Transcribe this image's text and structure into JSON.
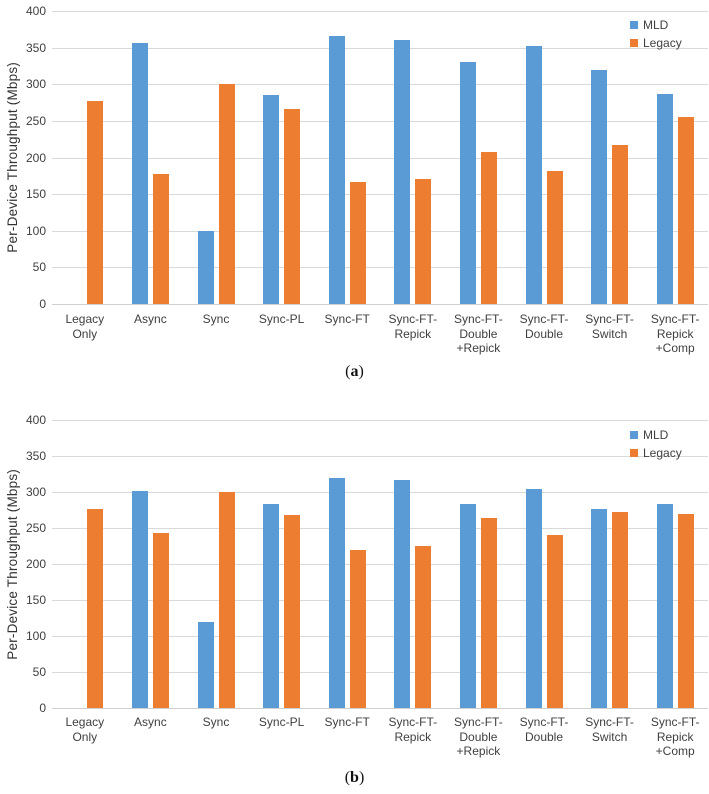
{
  "captions": {
    "paren_open": "(",
    "paren_close": ")",
    "a_letter": "a",
    "b_letter": "b"
  },
  "chart_data": [
    {
      "id": "a",
      "type": "bar",
      "title": "",
      "xlabel": "",
      "ylabel": "Per-Device Throughput (Mbps)",
      "ylim": [
        0,
        400
      ],
      "ytick_step": 50,
      "yticks": [
        0,
        50,
        100,
        150,
        200,
        250,
        300,
        350,
        400
      ],
      "grid": true,
      "legend_position": "top-right",
      "categories": [
        "Legacy Only",
        "Async",
        "Sync",
        "Sync-PL",
        "Sync-FT",
        "Sync-FT-Repick",
        "Sync-FT-Double+Repick",
        "Sync-FT-Double",
        "Sync-FT-Switch",
        "Sync-FT-Repick+Comp"
      ],
      "tick_lines": [
        [
          "Legacy",
          "Only"
        ],
        [
          "Async"
        ],
        [
          "Sync"
        ],
        [
          "Sync-PL"
        ],
        [
          "Sync-FT"
        ],
        [
          "Sync-FT-",
          "Repick"
        ],
        [
          "Sync-FT-",
          "Double",
          "+Repick"
        ],
        [
          "Sync-FT-",
          "Double"
        ],
        [
          "Sync-FT-",
          "Switch"
        ],
        [
          "Sync-FT-",
          "Repick",
          "+Comp"
        ]
      ],
      "series": [
        {
          "name": "MLD",
          "color": "#5B9BD5",
          "values": [
            null,
            356,
            100,
            285,
            366,
            360,
            330,
            352,
            319,
            287
          ]
        },
        {
          "name": "Legacy",
          "color": "#ED7D31",
          "values": [
            277,
            178,
            300,
            266,
            166,
            171,
            208,
            181,
            217,
            256
          ]
        }
      ]
    },
    {
      "id": "b",
      "type": "bar",
      "title": "",
      "xlabel": "",
      "ylabel": "Per-Device Throughput (Mbps)",
      "ylim": [
        0,
        400
      ],
      "ytick_step": 50,
      "yticks": [
        0,
        50,
        100,
        150,
        200,
        250,
        300,
        350,
        400
      ],
      "grid": true,
      "legend_position": "top-right",
      "categories": [
        "Legacy Only",
        "Async",
        "Sync",
        "Sync-PL",
        "Sync-FT",
        "Sync-FT-Repick",
        "Sync-FT-Double+Repick",
        "Sync-FT-Double",
        "Sync-FT-Switch",
        "Sync-FT-Repick+Comp"
      ],
      "tick_lines": [
        [
          "Legacy",
          "Only"
        ],
        [
          "Async"
        ],
        [
          "Sync"
        ],
        [
          "Sync-PL"
        ],
        [
          "Sync-FT"
        ],
        [
          "Sync-FT-",
          "Repick"
        ],
        [
          "Sync-FT-",
          "Double",
          "+Repick"
        ],
        [
          "Sync-FT-",
          "Double"
        ],
        [
          "Sync-FT-",
          "Switch"
        ],
        [
          "Sync-FT-",
          "Repick",
          "+Comp"
        ]
      ],
      "series": [
        {
          "name": "MLD",
          "color": "#5B9BD5",
          "values": [
            null,
            302,
            120,
            283,
            320,
            317,
            283,
            304,
            277,
            284
          ]
        },
        {
          "name": "Legacy",
          "color": "#ED7D31",
          "values": [
            277,
            243,
            300,
            268,
            220,
            225,
            264,
            240,
            272,
            269
          ]
        }
      ]
    }
  ]
}
